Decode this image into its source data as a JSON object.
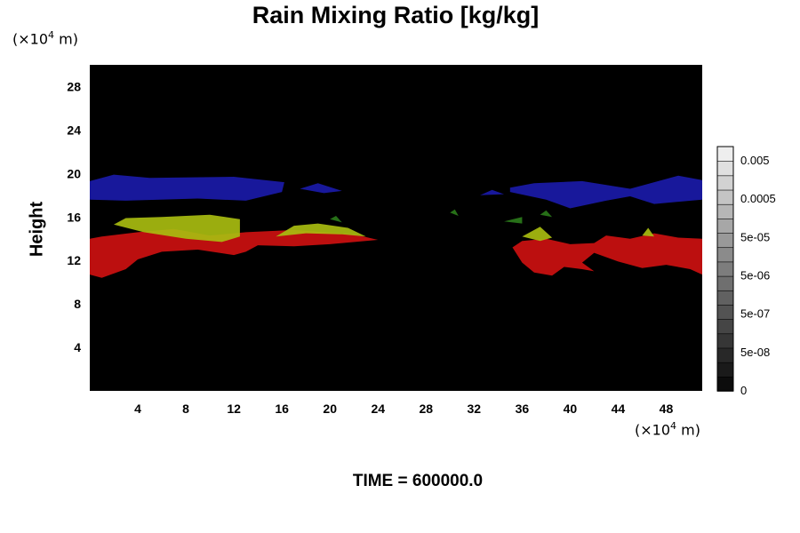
{
  "chart_data": {
    "type": "heatmap",
    "title": "Rain Mixing Ratio [kg/kg]",
    "ylabel": "Height",
    "xlabel": "",
    "x_unit": "(×10⁴ m)",
    "y_unit": "(×10⁴ m)",
    "footer": "TIME = 600000.0",
    "xlim": [
      0,
      51
    ],
    "ylim": [
      0,
      30
    ],
    "xticks": [
      4,
      8,
      12,
      16,
      20,
      24,
      28,
      32,
      36,
      40,
      44,
      48
    ],
    "yticks": [
      4,
      8,
      12,
      16,
      20,
      24,
      28
    ],
    "background_color": "#000000",
    "colorbar": {
      "scale": "log",
      "tick_labels": [
        "0",
        "5e-08",
        "5e-07",
        "5e-06",
        "5e-05",
        "0.0005",
        "0.005"
      ]
    },
    "regions": [
      {
        "name": "blue",
        "color": "#1a1aa8",
        "points": [
          [
            0,
            17.6
          ],
          [
            3,
            17.5
          ],
          [
            9,
            17.7
          ],
          [
            13,
            17.5
          ],
          [
            16,
            18.3
          ],
          [
            16.2,
            19.2
          ],
          [
            12,
            19.7
          ],
          [
            5,
            19.6
          ],
          [
            2,
            19.9
          ],
          [
            0,
            19.3
          ]
        ]
      },
      {
        "name": "blue",
        "color": "#1a1aa8",
        "points": [
          [
            17.5,
            18.6
          ],
          [
            19.5,
            18.2
          ],
          [
            21,
            18.4
          ],
          [
            19,
            19.1
          ]
        ]
      },
      {
        "name": "blue",
        "color": "#1a1aa8",
        "points": [
          [
            32.5,
            18.0
          ],
          [
            34.5,
            18.1
          ],
          [
            33.5,
            18.5
          ]
        ]
      },
      {
        "name": "blue",
        "color": "#1a1aa8",
        "points": [
          [
            35,
            18.3
          ],
          [
            38,
            17.6
          ],
          [
            40,
            16.8
          ],
          [
            43,
            17.5
          ],
          [
            45,
            17.9
          ],
          [
            47,
            17.2
          ],
          [
            51,
            17.6
          ],
          [
            51,
            19.4
          ],
          [
            49,
            19.8
          ],
          [
            47,
            19.2
          ],
          [
            45,
            18.6
          ],
          [
            41,
            19.3
          ],
          [
            37,
            19.1
          ],
          [
            35,
            18.7
          ]
        ]
      },
      {
        "name": "red",
        "color": "#cc1010",
        "points": [
          [
            0,
            10.7
          ],
          [
            1,
            10.4
          ],
          [
            3,
            11.2
          ],
          [
            4,
            12.1
          ],
          [
            6,
            12.8
          ],
          [
            9,
            13.0
          ],
          [
            12,
            12.5
          ],
          [
            13,
            12.8
          ],
          [
            14,
            13.4
          ],
          [
            17,
            13.3
          ],
          [
            20,
            13.5
          ],
          [
            24,
            13.9
          ],
          [
            22,
            14.4
          ],
          [
            17,
            14.8
          ],
          [
            13,
            14.6
          ],
          [
            10,
            14.3
          ],
          [
            7,
            14.9
          ],
          [
            4,
            14.6
          ],
          [
            1,
            14.2
          ],
          [
            0,
            14.0
          ]
        ]
      },
      {
        "name": "red",
        "color": "#cc1010",
        "points": [
          [
            35.2,
            13.2
          ],
          [
            36,
            11.8
          ],
          [
            37,
            10.9
          ],
          [
            38.5,
            10.6
          ],
          [
            39.5,
            11.4
          ],
          [
            41,
            11.2
          ],
          [
            42,
            11.0
          ],
          [
            41,
            11.8
          ],
          [
            42,
            12.7
          ],
          [
            44,
            11.9
          ],
          [
            46,
            11.3
          ],
          [
            48,
            11.6
          ],
          [
            50,
            11.2
          ],
          [
            51,
            10.7
          ],
          [
            51,
            14.0
          ],
          [
            49,
            14.1
          ],
          [
            47,
            14.5
          ],
          [
            45,
            14.0
          ],
          [
            43,
            14.3
          ],
          [
            42,
            13.6
          ],
          [
            40,
            13.5
          ],
          [
            38,
            14.0
          ],
          [
            36,
            13.8
          ]
        ]
      },
      {
        "name": "yellow",
        "color": "#a8bc10",
        "points": [
          [
            2,
            15.3
          ],
          [
            4.5,
            14.6
          ],
          [
            8,
            14.0
          ],
          [
            11,
            13.7
          ],
          [
            12.5,
            14.2
          ],
          [
            12.5,
            15.8
          ],
          [
            10,
            16.2
          ],
          [
            6,
            16.0
          ],
          [
            3,
            15.9
          ]
        ]
      },
      {
        "name": "yellow",
        "color": "#a8bc10",
        "points": [
          [
            15.5,
            14.2
          ],
          [
            18,
            14.5
          ],
          [
            21,
            14.4
          ],
          [
            23,
            14.2
          ],
          [
            21.5,
            15.0
          ],
          [
            19,
            15.4
          ],
          [
            17,
            15.2
          ]
        ]
      },
      {
        "name": "yellow",
        "color": "#a8bc10",
        "points": [
          [
            36,
            14.2
          ],
          [
            37.5,
            13.8
          ],
          [
            38.5,
            14.1
          ],
          [
            37.5,
            15.1
          ]
        ]
      },
      {
        "name": "yellow",
        "color": "#a8bc10",
        "points": [
          [
            46,
            14.3
          ],
          [
            47,
            14.2
          ],
          [
            46.5,
            15.0
          ]
        ]
      },
      {
        "name": "green",
        "color": "#2a7a1a",
        "points": [
          [
            30,
            16.4
          ],
          [
            30.7,
            16.1
          ],
          [
            30.4,
            16.7
          ]
        ]
      },
      {
        "name": "green",
        "color": "#2a7a1a",
        "points": [
          [
            34.5,
            15.6
          ],
          [
            36,
            15.4
          ],
          [
            36,
            16.0
          ]
        ]
      },
      {
        "name": "green",
        "color": "#2a7a1a",
        "points": [
          [
            37.5,
            16.2
          ],
          [
            38.5,
            16.0
          ],
          [
            38,
            16.6
          ]
        ]
      },
      {
        "name": "green",
        "color": "#2a7a1a",
        "points": [
          [
            20,
            15.8
          ],
          [
            21,
            15.5
          ],
          [
            20.5,
            16.1
          ]
        ]
      }
    ]
  }
}
